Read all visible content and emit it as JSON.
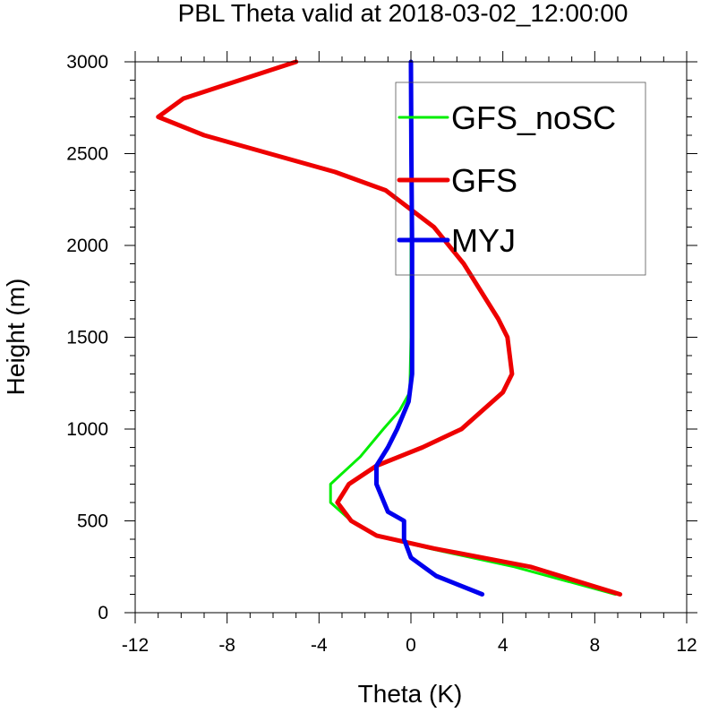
{
  "chart_data": {
    "type": "line",
    "title": "PBL Theta valid at 2018-03-02_12:00:00",
    "xlabel": "Theta (K)",
    "ylabel": "Height (m)",
    "xlim": [
      -12,
      12
    ],
    "ylim": [
      0,
      3000
    ],
    "xticks": [
      "-12",
      "-8",
      "-4",
      "0",
      "4",
      "8",
      "12"
    ],
    "yticks": [
      "0",
      "500",
      "1000",
      "1500",
      "2000",
      "2500",
      "3000"
    ],
    "grid": false,
    "legend_position": "top-right",
    "series": [
      {
        "name": "GFS_noSC",
        "color": "#00ee00",
        "points": [
          [
            8.9,
            100
          ],
          [
            4.5,
            250
          ],
          [
            0.8,
            350
          ],
          [
            -1.5,
            420
          ],
          [
            -2.6,
            500
          ],
          [
            -3.5,
            600
          ],
          [
            -3.5,
            700
          ],
          [
            -2.2,
            850
          ],
          [
            -1.2,
            1000
          ],
          [
            -0.5,
            1100
          ],
          [
            -0.05,
            1200
          ],
          [
            0,
            1500
          ],
          [
            0,
            2000
          ],
          [
            0,
            2500
          ],
          [
            0,
            3000
          ]
        ]
      },
      {
        "name": "GFS",
        "color": "#ee0000",
        "points": [
          [
            9.1,
            100
          ],
          [
            5.2,
            250
          ],
          [
            1.0,
            350
          ],
          [
            -1.5,
            420
          ],
          [
            -2.6,
            500
          ],
          [
            -3.2,
            600
          ],
          [
            -2.7,
            700
          ],
          [
            -1.5,
            800
          ],
          [
            0.5,
            900
          ],
          [
            2.2,
            1000
          ],
          [
            4.0,
            1200
          ],
          [
            4.4,
            1300
          ],
          [
            4.2,
            1500
          ],
          [
            3.8,
            1600
          ],
          [
            2.3,
            1900
          ],
          [
            1.0,
            2100
          ],
          [
            -1.1,
            2300
          ],
          [
            -3.3,
            2400
          ],
          [
            -9.0,
            2600
          ],
          [
            -11.0,
            2700
          ],
          [
            -9.9,
            2800
          ],
          [
            -5.0,
            3000
          ]
        ]
      },
      {
        "name": "MYJ",
        "color": "#0000ee",
        "points": [
          [
            3.1,
            100
          ],
          [
            1.1,
            200
          ],
          [
            0.0,
            300
          ],
          [
            -0.3,
            400
          ],
          [
            -0.3,
            500
          ],
          [
            -1.0,
            550
          ],
          [
            -1.5,
            700
          ],
          [
            -1.5,
            800
          ],
          [
            -1.0,
            900
          ],
          [
            -0.6,
            1000
          ],
          [
            -0.1,
            1150
          ],
          [
            0.05,
            1300
          ],
          [
            0.05,
            1500
          ],
          [
            0.05,
            2000
          ],
          [
            0.02,
            2500
          ],
          [
            0.0,
            3000
          ]
        ]
      }
    ]
  }
}
